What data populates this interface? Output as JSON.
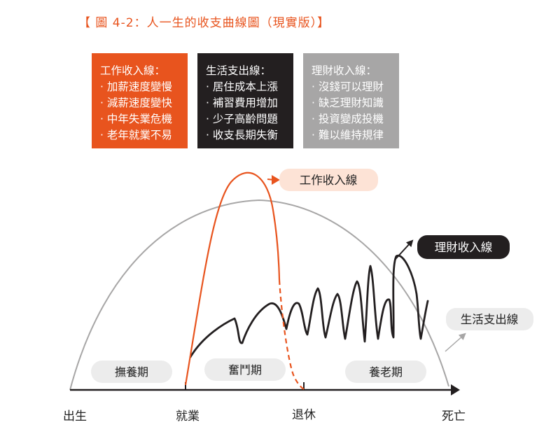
{
  "title": "【 圖 4-2：人一生的收支曲線圖（現實版）】",
  "boxes": {
    "work": {
      "heading": "工作收入線：",
      "items": [
        "· 加薪速度變慢",
        "· 減薪速度變快",
        "· 中年失業危機",
        "· 老年就業不易"
      ],
      "color": "#e8541e"
    },
    "living": {
      "heading": "生活支出線：",
      "items": [
        "· 居住成本上漲",
        "· 補習費用增加",
        "· 少子高齡問題",
        "· 收支長期失衡"
      ],
      "color": "#231f20"
    },
    "finance": {
      "heading": "理財收入線：",
      "items": [
        "· 沒錢可以理財",
        "· 缺乏理財知識",
        "· 投資變成投機",
        "· 難以維持規律"
      ],
      "color": "#a7a6a6"
    }
  },
  "callouts": {
    "work_income": "工作收入線",
    "financial_income": "理財收入線",
    "living_expense": "生活支出線"
  },
  "periods": {
    "childhood": "撫養期",
    "working": "奮鬥期",
    "retirement": "養老期"
  },
  "axis": {
    "birth": "出生",
    "employment": "就業",
    "retire": "退休",
    "death": "死亡"
  },
  "colors": {
    "orange": "#e8541e",
    "black": "#231f20",
    "gray": "#a7a6a6",
    "light_orange": "#fde3d6",
    "light_gray": "#ececec"
  }
}
